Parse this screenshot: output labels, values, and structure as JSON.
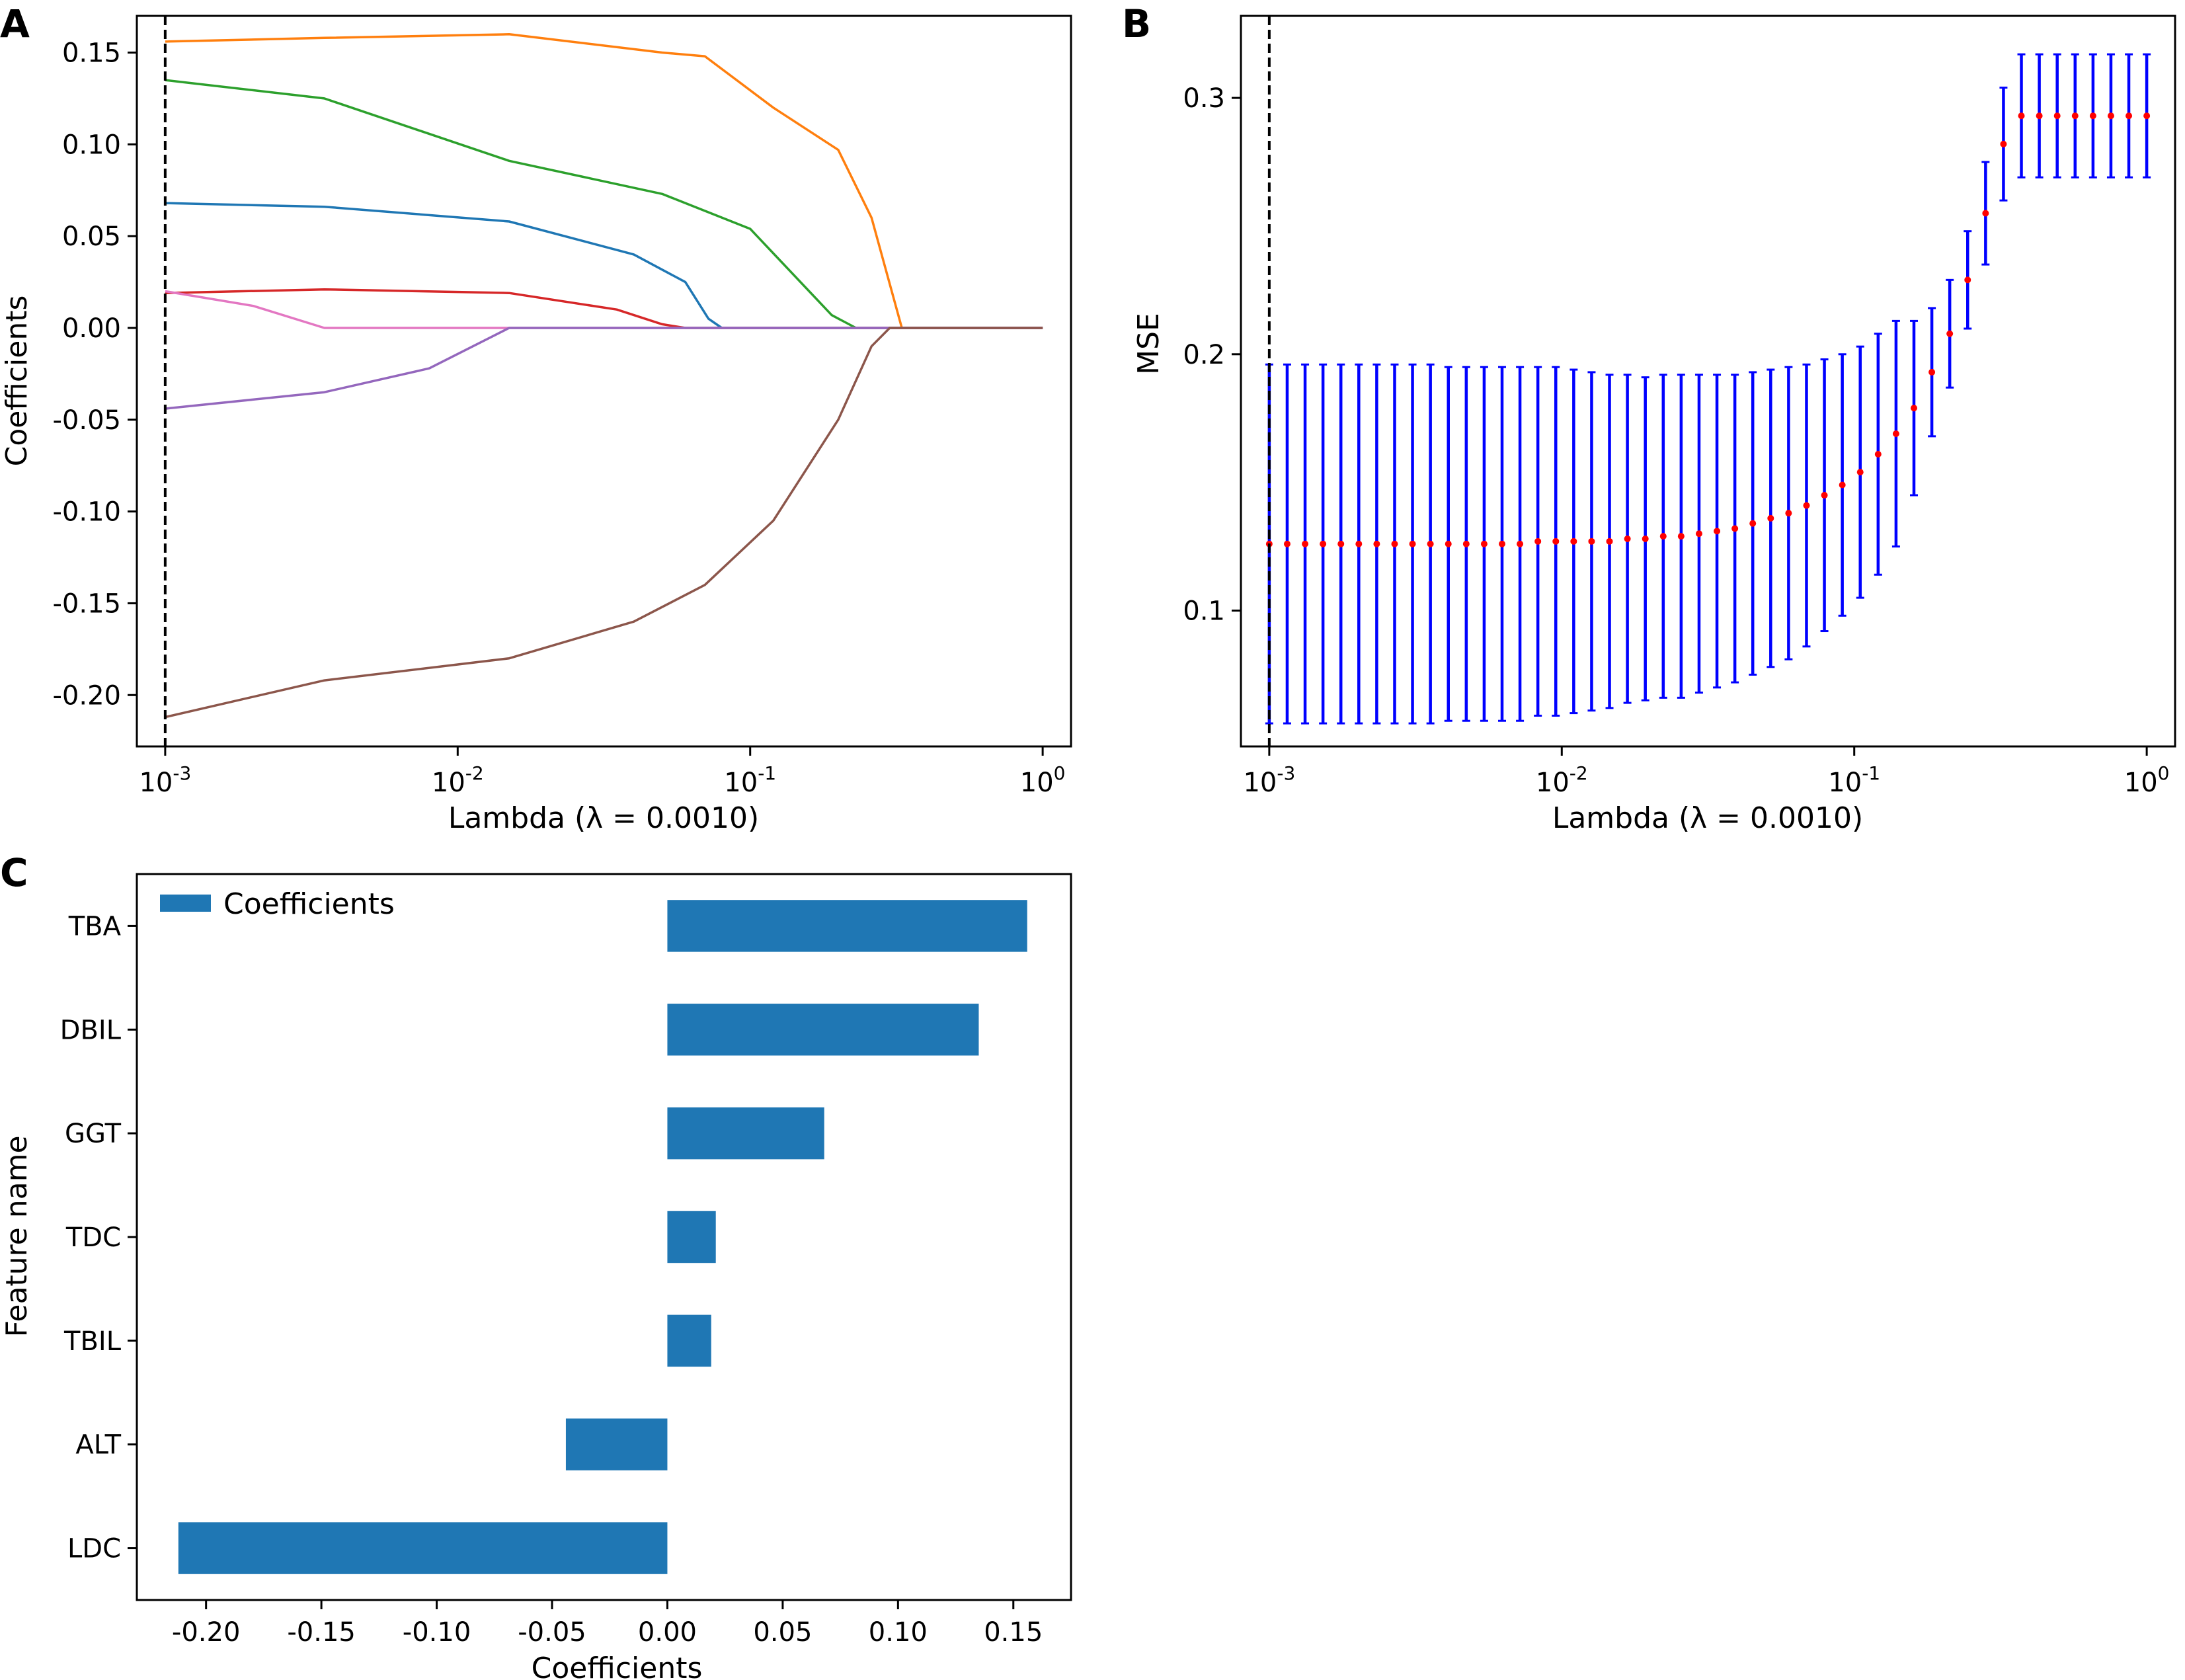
{
  "panels": {
    "a": {
      "letter": "A"
    },
    "b": {
      "letter": "B"
    },
    "c": {
      "letter": "C"
    }
  },
  "colors": {
    "error_bar": "#0000ff",
    "mse_point": "#ff0000",
    "bar": "#1f77b4",
    "vline": "#000000"
  },
  "chart_data": [
    {
      "id": "A",
      "type": "line",
      "xscale": "log",
      "xlim": [
        0.0008,
        1.25
      ],
      "ylim": [
        -0.228,
        0.17
      ],
      "xticks": [
        {
          "v": 0.001,
          "exp": "-3"
        },
        {
          "v": 0.01,
          "exp": "-2"
        },
        {
          "v": 0.1,
          "exp": "-1"
        },
        {
          "v": 1,
          "exp": "0"
        }
      ],
      "yticks": [
        0.15,
        0.1,
        0.05,
        0.0,
        -0.05,
        -0.1,
        -0.15,
        -0.2
      ],
      "xlabel": "Lambda (λ = 0.0010)",
      "ylabel": "Coefficients",
      "vline_x": 0.001,
      "series": [
        {
          "color": "#ff7f0e",
          "x": [
            0.001,
            0.0035,
            0.015,
            0.05,
            0.07,
            0.12,
            0.2,
            0.26,
            0.33,
            1.0
          ],
          "y": [
            0.156,
            0.158,
            0.16,
            0.15,
            0.148,
            0.12,
            0.097,
            0.06,
            0.0,
            0.0
          ]
        },
        {
          "color": "#2ca02c",
          "x": [
            0.001,
            0.0035,
            0.015,
            0.05,
            0.1,
            0.19,
            0.23,
            1.0
          ],
          "y": [
            0.135,
            0.125,
            0.091,
            0.073,
            0.054,
            0.007,
            0.0,
            0.0
          ]
        },
        {
          "color": "#1f77b4",
          "x": [
            0.001,
            0.0035,
            0.015,
            0.04,
            0.06,
            0.072,
            0.08,
            1.0
          ],
          "y": [
            0.068,
            0.066,
            0.058,
            0.04,
            0.025,
            0.005,
            0.0,
            0.0
          ]
        },
        {
          "color": "#d62728",
          "x": [
            0.001,
            0.0035,
            0.015,
            0.035,
            0.05,
            0.06,
            1.0
          ],
          "y": [
            0.019,
            0.021,
            0.019,
            0.01,
            0.002,
            0.0,
            0.0
          ]
        },
        {
          "color": "#e377c2",
          "x": [
            0.001,
            0.002,
            0.0035,
            1.0
          ],
          "y": [
            0.02,
            0.012,
            0.0,
            0.0
          ]
        },
        {
          "color": "#9467bd",
          "x": [
            0.001,
            0.0035,
            0.008,
            0.015,
            1.0
          ],
          "y": [
            -0.044,
            -0.035,
            -0.022,
            0.0,
            0.0
          ]
        },
        {
          "color": "#8c564b",
          "x": [
            0.001,
            0.0035,
            0.015,
            0.04,
            0.07,
            0.12,
            0.2,
            0.26,
            0.3,
            1.0
          ],
          "y": [
            -0.212,
            -0.192,
            -0.18,
            -0.16,
            -0.14,
            -0.105,
            -0.05,
            -0.01,
            0.0,
            0.0
          ]
        }
      ]
    },
    {
      "id": "B",
      "type": "scatter",
      "xscale": "log",
      "xlim": [
        0.0008,
        1.25
      ],
      "ylim": [
        0.047,
        0.332
      ],
      "xticks": [
        {
          "v": 0.001,
          "exp": "-3"
        },
        {
          "v": 0.01,
          "exp": "-2"
        },
        {
          "v": 0.1,
          "exp": "-1"
        },
        {
          "v": 1,
          "exp": "0"
        }
      ],
      "yticks": [
        0.1,
        0.2,
        0.3
      ],
      "xlabel": "Lambda (λ = 0.0010)",
      "ylabel": "MSE",
      "vline_x": 0.001,
      "n_points": 50,
      "x_range": [
        0.001,
        1.0
      ],
      "mse": [
        0.126,
        0.126,
        0.126,
        0.126,
        0.126,
        0.126,
        0.126,
        0.126,
        0.126,
        0.126,
        0.126,
        0.126,
        0.126,
        0.126,
        0.126,
        0.127,
        0.127,
        0.127,
        0.127,
        0.127,
        0.128,
        0.128,
        0.129,
        0.129,
        0.13,
        0.131,
        0.132,
        0.134,
        0.136,
        0.138,
        0.141,
        0.145,
        0.149,
        0.154,
        0.161,
        0.169,
        0.179,
        0.193,
        0.208,
        0.229,
        0.255,
        0.282,
        0.293,
        0.293,
        0.293,
        0.293,
        0.293,
        0.293,
        0.293,
        0.293
      ],
      "half_width": [
        0.07,
        0.07,
        0.07,
        0.07,
        0.07,
        0.07,
        0.07,
        0.07,
        0.07,
        0.07,
        0.069,
        0.069,
        0.069,
        0.069,
        0.069,
        0.068,
        0.068,
        0.067,
        0.066,
        0.065,
        0.064,
        0.063,
        0.063,
        0.063,
        0.062,
        0.061,
        0.06,
        0.059,
        0.058,
        0.057,
        0.055,
        0.053,
        0.051,
        0.049,
        0.047,
        0.044,
        0.034,
        0.025,
        0.021,
        0.019,
        0.02,
        0.022,
        0.024,
        0.024,
        0.024,
        0.024,
        0.024,
        0.024,
        0.024,
        0.024
      ]
    },
    {
      "id": "C",
      "type": "bar",
      "orientation": "horizontal",
      "categories": [
        "TBA",
        "DBIL",
        "GGT",
        "TDC",
        "TBIL",
        "ALT",
        "LDC"
      ],
      "values": [
        0.156,
        0.135,
        0.068,
        0.021,
        0.019,
        -0.044,
        -0.212
      ],
      "xlim": [
        -0.23,
        0.175
      ],
      "xticks": [
        -0.2,
        -0.15,
        -0.1,
        -0.05,
        0.0,
        0.05,
        0.1,
        0.15
      ],
      "xlabel": "Coefficients",
      "ylabel": "Feature name",
      "legend": {
        "label": "Coefficients",
        "position": "top-left"
      }
    }
  ]
}
